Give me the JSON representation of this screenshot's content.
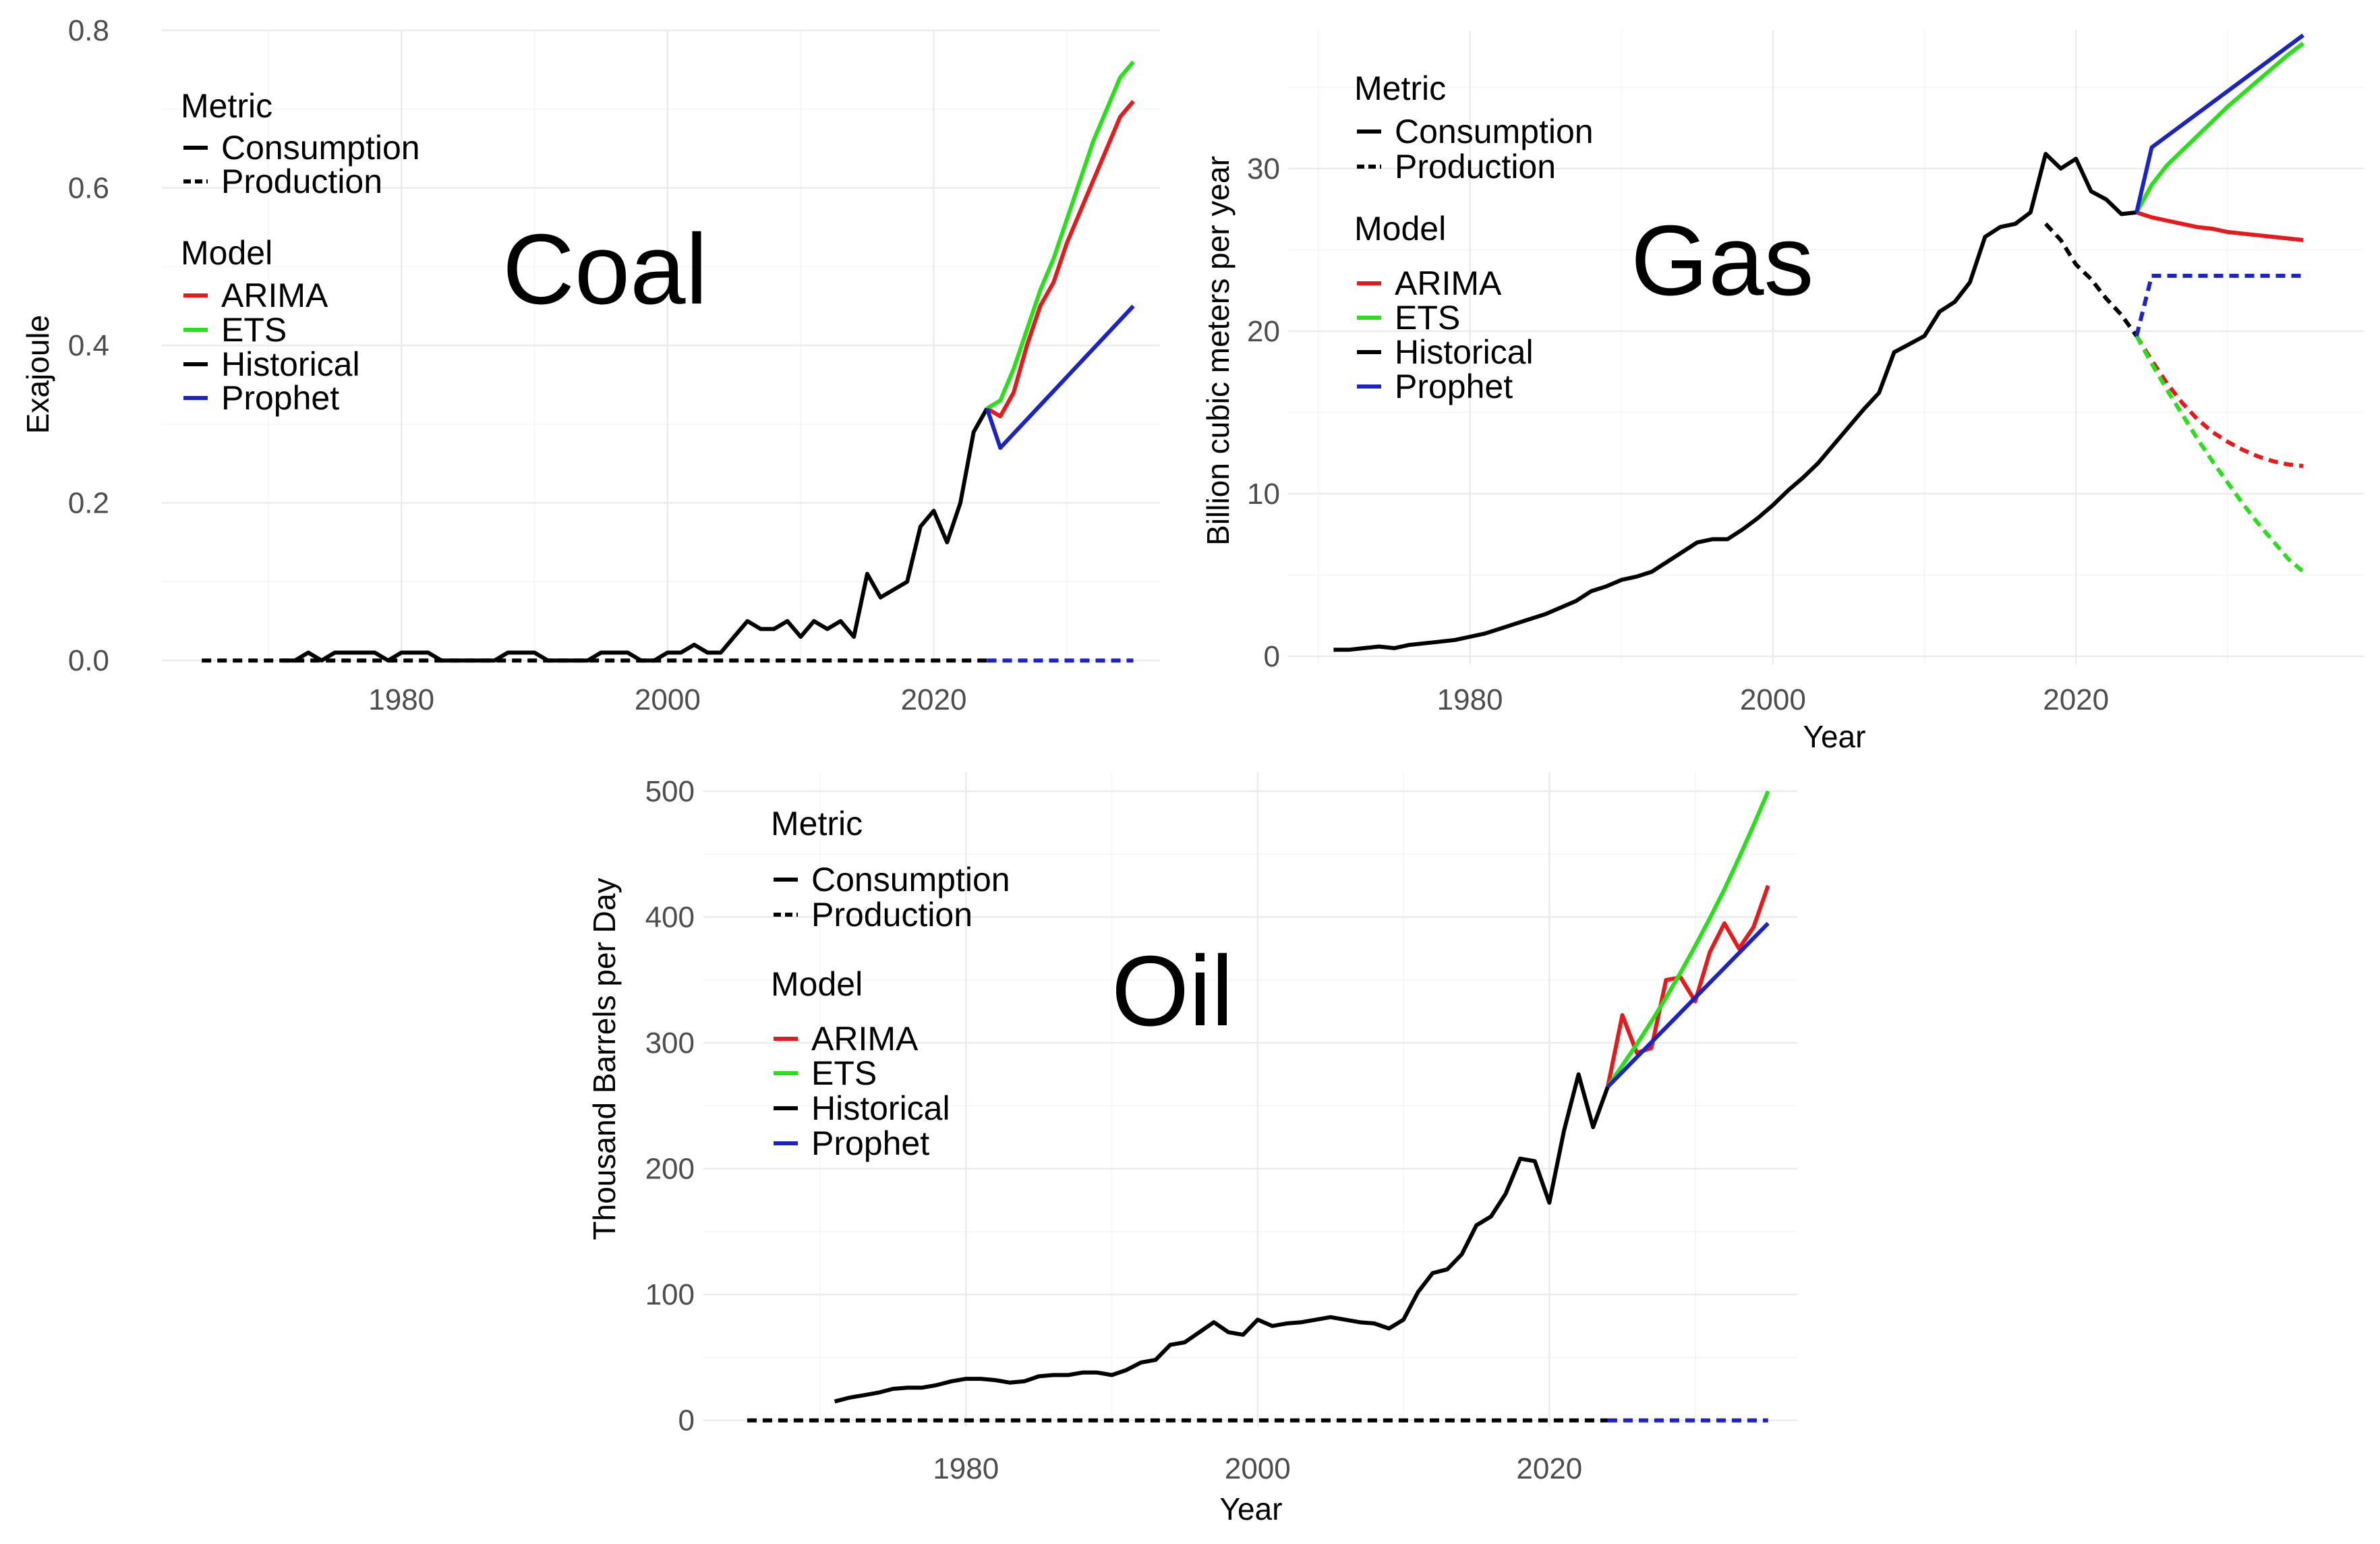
{
  "colors": {
    "ARIMA": "#e8191a",
    "ETS": "#27e018",
    "Historical": "#000000",
    "Prophet": "#1a23c8"
  },
  "legend": {
    "metric_title": "Metric",
    "metric_items": [
      {
        "label": "Consumption",
        "dash": "solid"
      },
      {
        "label": "Production",
        "dash": "dashed"
      }
    ],
    "model_title": "Model",
    "model_items": [
      "ARIMA",
      "ETS",
      "Historical",
      "Prophet"
    ]
  },
  "chart_data": [
    {
      "id": "coal",
      "type": "line",
      "title": "Coal",
      "xlabel": "",
      "ylabel": "Exajoule",
      "xlim": [
        1962,
        2037
      ],
      "ylim": [
        -0.005,
        0.8
      ],
      "xticks": [
        1980,
        2000,
        2020
      ],
      "yticks": [
        0.0,
        0.2,
        0.4,
        0.6,
        0.8
      ],
      "ytick_labels": [
        "0.0",
        "0.2",
        "0.4",
        "0.6",
        "0.8"
      ],
      "series": [
        {
          "name": "Historical",
          "metric": "Consumption",
          "x": [
            1971,
            1972,
            1973,
            1974,
            1975,
            1976,
            1977,
            1978,
            1979,
            1980,
            1981,
            1982,
            1983,
            1984,
            1985,
            1986,
            1987,
            1988,
            1989,
            1990,
            1991,
            1992,
            1993,
            1994,
            1995,
            1996,
            1997,
            1998,
            1999,
            2000,
            2001,
            2002,
            2003,
            2004,
            2005,
            2006,
            2007,
            2008,
            2009,
            2010,
            2011,
            2012,
            2013,
            2014,
            2015,
            2016,
            2017,
            2018,
            2019,
            2020,
            2021,
            2022,
            2023,
            2024
          ],
          "y": [
            0,
            0,
            0.01,
            0,
            0.01,
            0.01,
            0.01,
            0.01,
            0,
            0.01,
            0.01,
            0.01,
            0,
            0,
            0,
            0,
            0,
            0.01,
            0.01,
            0.01,
            0,
            0,
            0,
            0,
            0.01,
            0.01,
            0.01,
            0,
            0,
            0.01,
            0.01,
            0.02,
            0.01,
            0.01,
            0.03,
            0.05,
            0.04,
            0.04,
            0.05,
            0.03,
            0.05,
            0.04,
            0.05,
            0.03,
            0.11,
            0.08,
            0.09,
            0.1,
            0.17,
            0.19,
            0.15,
            0.2,
            0.29,
            0.32
          ]
        },
        {
          "name": "Historical",
          "metric": "Production",
          "x": [
            1965,
            2024
          ],
          "y": [
            0,
            0
          ]
        },
        {
          "name": "ARIMA",
          "metric": "Consumption",
          "x": [
            2024,
            2025,
            2026,
            2027,
            2028,
            2029,
            2030,
            2031,
            2032,
            2033,
            2034,
            2035
          ],
          "y": [
            0.32,
            0.31,
            0.34,
            0.4,
            0.45,
            0.48,
            0.53,
            0.57,
            0.61,
            0.65,
            0.69,
            0.71
          ]
        },
        {
          "name": "ETS",
          "metric": "Consumption",
          "x": [
            2024,
            2025,
            2026,
            2027,
            2028,
            2029,
            2030,
            2031,
            2032,
            2033,
            2034,
            2035
          ],
          "y": [
            0.32,
            0.33,
            0.37,
            0.42,
            0.47,
            0.51,
            0.56,
            0.61,
            0.66,
            0.7,
            0.74,
            0.76
          ]
        },
        {
          "name": "Prophet",
          "metric": "Consumption",
          "x": [
            2024,
            2025,
            2035
          ],
          "y": [
            0.32,
            0.27,
            0.45
          ]
        },
        {
          "name": "Prophet",
          "metric": "Production",
          "x": [
            2024,
            2035
          ],
          "y": [
            0,
            0
          ]
        }
      ]
    },
    {
      "id": "gas",
      "type": "line",
      "title": "Gas",
      "xlabel": "Year",
      "ylabel": "Billion cubic meters per year",
      "xlim": [
        1968,
        2039
      ],
      "ylim": [
        -0.5,
        38.5
      ],
      "xticks": [
        1980,
        2000,
        2020
      ],
      "yticks": [
        0,
        10,
        20,
        30
      ],
      "ytick_labels": [
        "0",
        "10",
        "20",
        "30"
      ],
      "series": [
        {
          "name": "Historical",
          "metric": "Consumption",
          "x": [
            1971,
            1972,
            1973,
            1974,
            1975,
            1976,
            1977,
            1978,
            1979,
            1980,
            1981,
            1982,
            1983,
            1984,
            1985,
            1986,
            1987,
            1988,
            1989,
            1990,
            1991,
            1992,
            1993,
            1994,
            1995,
            1996,
            1997,
            1998,
            1999,
            2000,
            2001,
            2002,
            2003,
            2004,
            2005,
            2006,
            2007,
            2008,
            2009,
            2010,
            2011,
            2012,
            2013,
            2014,
            2015,
            2016,
            2017,
            2018,
            2019,
            2020,
            2021,
            2022,
            2023,
            2024
          ],
          "y": [
            0.4,
            0.4,
            0.5,
            0.6,
            0.5,
            0.7,
            0.8,
            0.9,
            1.0,
            1.2,
            1.4,
            1.7,
            2.0,
            2.3,
            2.6,
            3.0,
            3.4,
            4.0,
            4.3,
            4.7,
            4.9,
            5.2,
            5.8,
            6.4,
            7.0,
            7.2,
            7.2,
            7.8,
            8.5,
            9.3,
            10.2,
            11.0,
            11.9,
            13.0,
            14.1,
            15.2,
            16.2,
            18.7,
            19.2,
            19.7,
            21.2,
            21.8,
            23.0,
            25.8,
            26.4,
            26.6,
            27.3,
            30.9,
            30.0,
            30.6,
            28.6,
            28.1,
            27.2,
            27.3
          ]
        },
        {
          "name": "Historical",
          "metric": "Production",
          "x": [
            2018,
            2019,
            2020,
            2021,
            2022,
            2023,
            2024
          ],
          "y": [
            26.6,
            25.6,
            24.1,
            23.2,
            22.0,
            21.0,
            19.7
          ]
        },
        {
          "name": "ARIMA",
          "metric": "Consumption",
          "x": [
            2024,
            2025,
            2026,
            2027,
            2028,
            2029,
            2030,
            2031,
            2032,
            2033,
            2034,
            2035
          ],
          "y": [
            27.3,
            27.0,
            26.8,
            26.6,
            26.4,
            26.3,
            26.1,
            26.0,
            25.9,
            25.8,
            25.7,
            25.6
          ]
        },
        {
          "name": "ETS",
          "metric": "Consumption",
          "x": [
            2024,
            2025,
            2026,
            2027,
            2028,
            2029,
            2030,
            2031,
            2032,
            2033,
            2034,
            2035
          ],
          "y": [
            27.3,
            29.0,
            30.2,
            31.1,
            32.0,
            32.9,
            33.8,
            34.6,
            35.4,
            36.2,
            37.0,
            37.7
          ]
        },
        {
          "name": "Prophet",
          "metric": "Consumption",
          "x": [
            2024,
            2025,
            2035
          ],
          "y": [
            27.3,
            31.3,
            38.2
          ]
        },
        {
          "name": "ARIMA",
          "metric": "Production",
          "x": [
            2024,
            2025,
            2026,
            2027,
            2028,
            2029,
            2030,
            2031,
            2032,
            2033,
            2034,
            2035
          ],
          "y": [
            19.7,
            18.2,
            16.8,
            15.6,
            14.6,
            13.8,
            13.2,
            12.7,
            12.3,
            12.0,
            11.8,
            11.7
          ]
        },
        {
          "name": "ETS",
          "metric": "Production",
          "x": [
            2024,
            2025,
            2026,
            2027,
            2028,
            2029,
            2030,
            2031,
            2032,
            2033,
            2034,
            2035
          ],
          "y": [
            19.7,
            18.0,
            16.4,
            14.9,
            13.4,
            12.0,
            10.7,
            9.4,
            8.2,
            7.1,
            6.0,
            5.2
          ]
        },
        {
          "name": "Prophet",
          "metric": "Production",
          "x": [
            2024,
            2025,
            2035
          ],
          "y": [
            19.7,
            23.4,
            23.4
          ]
        }
      ]
    },
    {
      "id": "oil",
      "type": "line",
      "title": "Oil",
      "xlabel": "Year",
      "ylabel": "Thousand Barrels per Day",
      "xlim": [
        1962,
        2037
      ],
      "ylim": [
        -5,
        515
      ],
      "xticks": [
        1980,
        2000,
        2020
      ],
      "yticks": [
        0,
        100,
        200,
        300,
        400,
        500
      ],
      "ytick_labels": [
        "0",
        "100",
        "200",
        "300",
        "400",
        "500"
      ],
      "series": [
        {
          "name": "Historical",
          "metric": "Consumption",
          "x": [
            1971,
            1972,
            1973,
            1974,
            1975,
            1976,
            1977,
            1978,
            1979,
            1980,
            1981,
            1982,
            1983,
            1984,
            1985,
            1986,
            1987,
            1988,
            1989,
            1990,
            1991,
            1992,
            1993,
            1994,
            1995,
            1996,
            1997,
            1998,
            1999,
            2000,
            2001,
            2002,
            2003,
            2004,
            2005,
            2006,
            2007,
            2008,
            2009,
            2010,
            2011,
            2012,
            2013,
            2014,
            2015,
            2016,
            2017,
            2018,
            2019,
            2020,
            2021,
            2022,
            2023,
            2024
          ],
          "y": [
            15,
            18,
            20,
            22,
            25,
            26,
            26,
            28,
            31,
            33,
            33,
            32,
            30,
            31,
            35,
            36,
            36,
            38,
            38,
            36,
            40,
            46,
            48,
            60,
            62,
            70,
            78,
            70,
            68,
            80,
            75,
            77,
            78,
            80,
            82,
            80,
            78,
            77,
            73,
            80,
            102,
            117,
            120,
            132,
            155,
            162,
            180,
            208,
            206,
            173,
            230,
            275,
            233,
            265
          ]
        },
        {
          "name": "Historical",
          "metric": "Production",
          "x": [
            1965,
            2024
          ],
          "y": [
            0,
            0
          ]
        },
        {
          "name": "ARIMA",
          "metric": "Consumption",
          "x": [
            2024,
            2025,
            2026,
            2027,
            2028,
            2029,
            2030,
            2031,
            2032,
            2033,
            2034,
            2035
          ],
          "y": [
            265,
            322,
            292,
            296,
            350,
            352,
            333,
            372,
            395,
            375,
            392,
            425
          ]
        },
        {
          "name": "ETS",
          "metric": "Consumption",
          "x": [
            2024,
            2025,
            2026,
            2027,
            2028,
            2029,
            2030,
            2031,
            2032,
            2033,
            2034,
            2035
          ],
          "y": [
            265,
            282,
            299,
            317,
            336,
            356,
            377,
            399,
            422,
            447,
            473,
            500
          ]
        },
        {
          "name": "Prophet",
          "metric": "Consumption",
          "x": [
            2024,
            2035
          ],
          "y": [
            265,
            395
          ]
        },
        {
          "name": "Prophet",
          "metric": "Production",
          "x": [
            2024,
            2035
          ],
          "y": [
            0,
            0
          ]
        }
      ]
    }
  ]
}
